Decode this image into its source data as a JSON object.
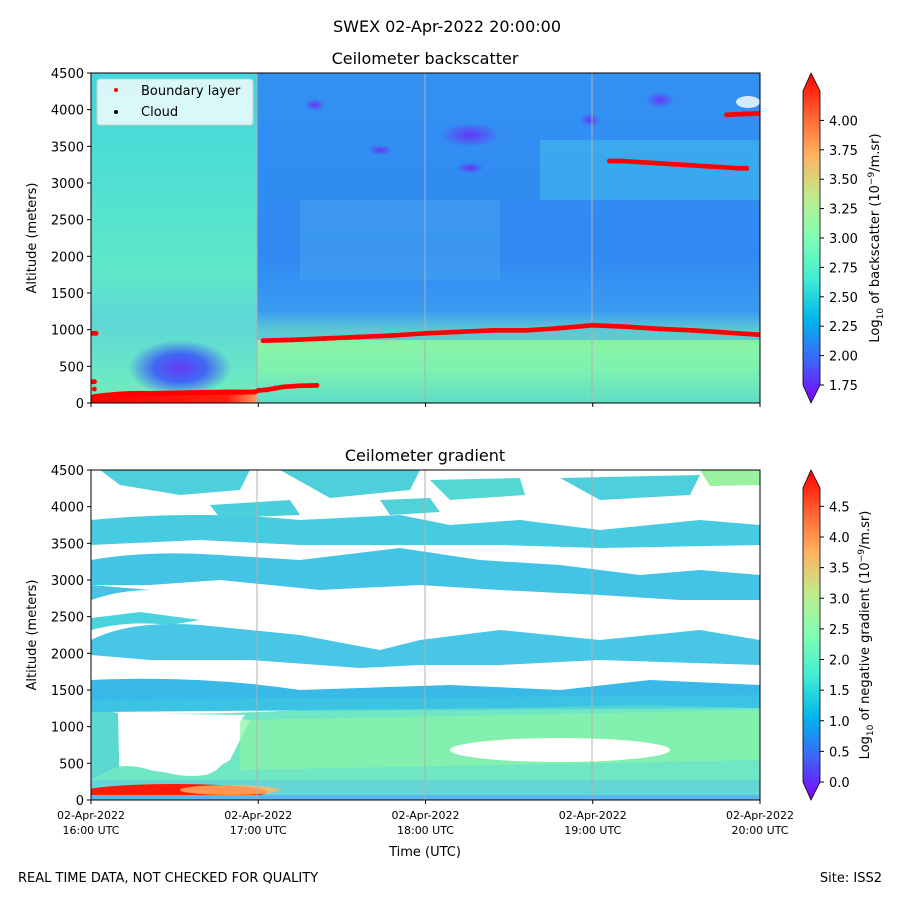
{
  "suptitle": "SWEX 02-Apr-2022 20:00:00",
  "footer_left": "REAL TIME DATA, NOT CHECKED FOR QUALITY",
  "footer_right": "Site: ISS2",
  "chart_data": [
    {
      "type": "heatmap",
      "title": "Ceilometer backscatter",
      "ylabel": "Altitude (meters)",
      "xlabel": "",
      "ylim": [
        0,
        4500
      ],
      "yticks": [
        0,
        500,
        1000,
        1500,
        2000,
        2500,
        3000,
        3500,
        4000,
        4500
      ],
      "xlim_hours_utc": [
        16,
        20
      ],
      "xticks": [
        {
          "line1": "02-Apr-2022",
          "line2": "16:00 UTC"
        },
        {
          "line1": "02-Apr-2022",
          "line2": "17:00 UTC"
        },
        {
          "line1": "02-Apr-2022",
          "line2": "18:00 UTC"
        },
        {
          "line1": "02-Apr-2022",
          "line2": "19:00 UTC"
        },
        {
          "line1": "02-Apr-2022",
          "line2": "20:00 UTC"
        }
      ],
      "grid": "vertical lines at each x tick",
      "legend": {
        "placement": "upper-left",
        "entries": [
          {
            "label": "Boundary layer",
            "color": "#ff0000"
          },
          {
            "label": "Cloud",
            "color": "#000000"
          }
        ]
      },
      "colorbar": {
        "label_prefix": "Log",
        "label_sub": "10",
        "label_suffix": " of backscatter (10",
        "label_sup": "−9",
        "label_end": "/m.sr)",
        "colormap": "rainbow",
        "range": [
          1.75,
          4.25
        ],
        "ticks": [
          "1.75",
          "2.00",
          "2.25",
          "2.50",
          "2.75",
          "3.00",
          "3.25",
          "3.50",
          "3.75",
          "4.00"
        ],
        "extend": "both"
      },
      "series": [
        {
          "name": "Boundary layer",
          "points": [
            [
              16.0,
              950
            ],
            [
              16.03,
              950
            ],
            [
              16.0,
              290
            ],
            [
              16.02,
              290
            ],
            [
              16.02,
              90
            ],
            [
              16.1,
              110
            ],
            [
              16.2,
              120
            ],
            [
              16.3,
              125
            ],
            [
              16.4,
              130
            ],
            [
              16.5,
              135
            ],
            [
              16.6,
              140
            ],
            [
              16.7,
              140
            ],
            [
              16.8,
              145
            ],
            [
              16.9,
              145
            ],
            [
              16.98,
              150
            ],
            [
              17.0,
              170
            ],
            [
              17.05,
              180
            ],
            [
              17.1,
              200
            ],
            [
              17.15,
              220
            ],
            [
              17.25,
              235
            ],
            [
              17.35,
              240
            ],
            [
              17.03,
              850
            ],
            [
              17.2,
              860
            ],
            [
              17.4,
              880
            ],
            [
              17.6,
              900
            ],
            [
              17.8,
              920
            ],
            [
              18.0,
              950
            ],
            [
              18.2,
              970
            ],
            [
              18.4,
              990
            ],
            [
              18.6,
              990
            ],
            [
              18.8,
              1020
            ],
            [
              19.0,
              1060
            ],
            [
              19.2,
              1040
            ],
            [
              19.4,
              1010
            ],
            [
              19.6,
              990
            ],
            [
              19.8,
              960
            ],
            [
              20.0,
              930
            ],
            [
              19.1,
              3300
            ],
            [
              19.17,
              3300
            ],
            [
              19.88,
              3200
            ],
            [
              19.92,
              3200
            ],
            [
              19.8,
              3930
            ],
            [
              19.9,
              3940
            ],
            [
              20.0,
              3950
            ]
          ]
        },
        {
          "name": "Cloud",
          "points": []
        }
      ]
    },
    {
      "type": "heatmap",
      "title": "Ceilometer gradient",
      "ylabel": "Altitude (meters)",
      "xlabel": "Time (UTC)",
      "ylim": [
        0,
        4500
      ],
      "yticks": [
        0,
        500,
        1000,
        1500,
        2000,
        2500,
        3000,
        3500,
        4000,
        4500
      ],
      "xlim_hours_utc": [
        16,
        20
      ],
      "xticks": [
        {
          "line1": "02-Apr-2022",
          "line2": "16:00 UTC"
        },
        {
          "line1": "02-Apr-2022",
          "line2": "17:00 UTC"
        },
        {
          "line1": "02-Apr-2022",
          "line2": "18:00 UTC"
        },
        {
          "line1": "02-Apr-2022",
          "line2": "19:00 UTC"
        },
        {
          "line1": "02-Apr-2022",
          "line2": "20:00 UTC"
        }
      ],
      "grid": "vertical lines at each x tick",
      "colorbar": {
        "label_prefix": "Log",
        "label_sub": "10",
        "label_suffix": " of negative gradient (10",
        "label_sup": "−9",
        "label_end": "/m.sr)",
        "colormap": "rainbow",
        "range": [
          0.0,
          4.8
        ],
        "ticks": [
          "0.0",
          "0.5",
          "1.0",
          "1.5",
          "2.0",
          "2.5",
          "3.0",
          "3.5",
          "4.0",
          "4.5"
        ],
        "extend": "both"
      }
    }
  ]
}
